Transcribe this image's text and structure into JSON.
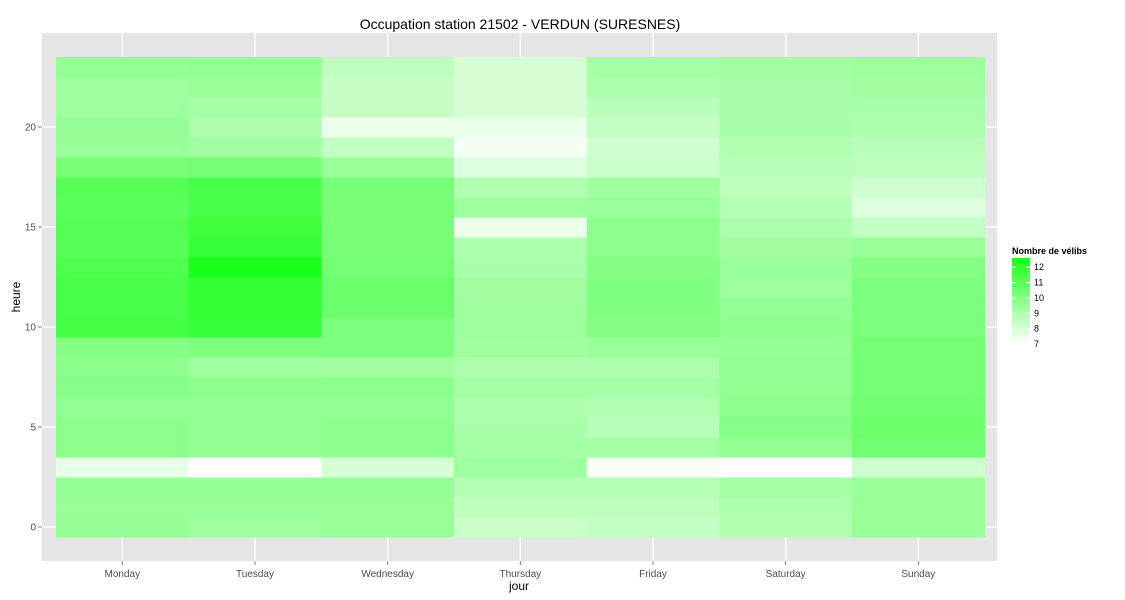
{
  "chart_data": {
    "type": "heatmap",
    "title": "Occupation station 21502 - VERDUN (SURESNES)",
    "xlabel": "jour",
    "ylabel": "heure",
    "x_categories": [
      "Monday",
      "Tuesday",
      "Wednesday",
      "Thursday",
      "Friday",
      "Saturday",
      "Sunday"
    ],
    "y_range": [
      -0.5,
      23.5
    ],
    "y_ticks": [
      0,
      5,
      10,
      15,
      20
    ],
    "grid": true,
    "background_color": "#e5e5e5",
    "gridline_color": "#ffffff",
    "legend": {
      "title": "Nombre de vélibs",
      "placement": "right",
      "ticks": [
        12,
        11,
        10,
        9,
        8,
        7
      ],
      "low_value": 7,
      "high_value": 12.6,
      "low_color": "#ffffff",
      "high_color": "#1aff1a"
    },
    "values_by_hour": [
      [
        9.6,
        9.4,
        9.5,
        8.3,
        8.5,
        8.9,
        9.5
      ],
      [
        9.5,
        9.5,
        9.5,
        8.6,
        8.6,
        9.0,
        9.5
      ],
      [
        9.6,
        9.6,
        9.6,
        8.8,
        8.8,
        9.2,
        9.5
      ],
      [
        7.6,
        7.0,
        8.0,
        9.4,
        7.2,
        7.0,
        8.2
      ],
      [
        9.8,
        9.7,
        9.8,
        9.2,
        9.2,
        9.7,
        10.5
      ],
      [
        9.8,
        9.7,
        9.8,
        9.1,
        8.7,
        9.9,
        10.6
      ],
      [
        9.7,
        9.7,
        9.7,
        9.0,
        8.9,
        9.8,
        10.5
      ],
      [
        9.9,
        9.8,
        9.8,
        9.2,
        9.2,
        9.7,
        10.4
      ],
      [
        9.8,
        9.4,
        9.3,
        9.0,
        9.0,
        9.7,
        10.4
      ],
      [
        10.0,
        10.2,
        10.2,
        9.3,
        9.5,
        9.6,
        10.4
      ],
      [
        11.6,
        11.9,
        10.2,
        9.4,
        10.0,
        9.8,
        10.2
      ],
      [
        11.5,
        12.0,
        10.6,
        9.4,
        10.1,
        9.6,
        10.2
      ],
      [
        11.5,
        12.0,
        10.6,
        9.3,
        10.1,
        9.4,
        10.2
      ],
      [
        11.3,
        12.6,
        10.4,
        9.1,
        10.0,
        9.5,
        10.0
      ],
      [
        11.1,
        11.9,
        10.3,
        9.0,
        9.8,
        9.3,
        9.5
      ],
      [
        11.2,
        11.7,
        10.3,
        7.5,
        9.8,
        9.0,
        8.5
      ],
      [
        11.0,
        11.5,
        10.3,
        9.4,
        9.5,
        8.8,
        7.8
      ],
      [
        11.1,
        11.5,
        10.3,
        8.9,
        9.3,
        8.6,
        8.2
      ],
      [
        10.3,
        10.4,
        9.5,
        7.8,
        8.3,
        8.7,
        8.6
      ],
      [
        9.5,
        9.3,
        8.5,
        7.3,
        8.2,
        8.9,
        8.7
      ],
      [
        9.6,
        9.0,
        7.5,
        7.5,
        8.5,
        9.1,
        9.0
      ],
      [
        9.4,
        9.2,
        8.4,
        8.0,
        8.7,
        9.1,
        9.1
      ],
      [
        9.4,
        9.5,
        8.4,
        8.0,
        9.0,
        9.1,
        9.3
      ],
      [
        9.6,
        9.7,
        8.6,
        8.0,
        9.2,
        9.3,
        9.4
      ]
    ]
  }
}
